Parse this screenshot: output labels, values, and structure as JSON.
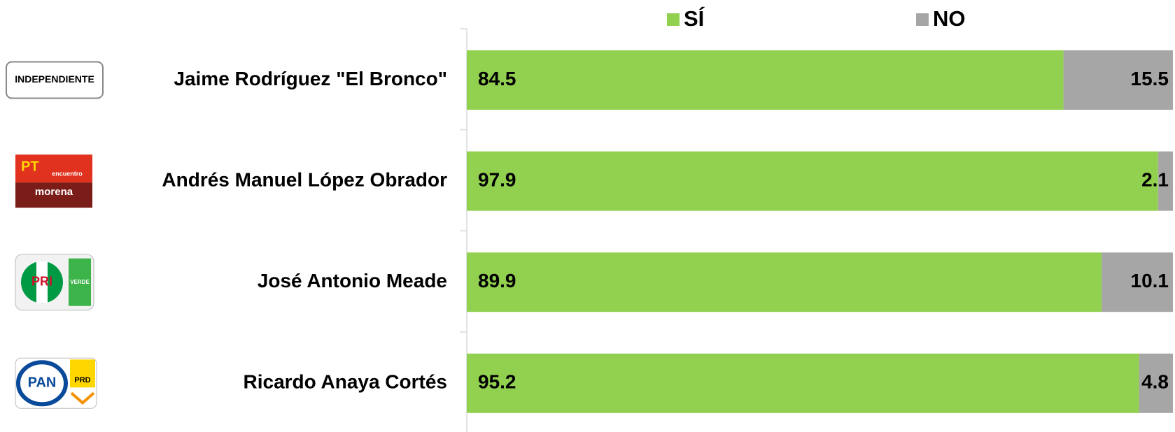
{
  "chart_data": {
    "type": "stacked_barh",
    "categories": [
      "Jaime Rodríguez \"El Bronco\"",
      "Andrés Manuel López Obrador",
      "José Antonio Meade",
      "Ricardo Anaya Cortés"
    ],
    "series": [
      {
        "name": "SÍ",
        "color": "#92d050",
        "values": [
          84.5,
          97.9,
          89.9,
          95.2
        ]
      },
      {
        "name": "NO",
        "color": "#a6a6a6",
        "values": [
          15.5,
          2.1,
          10.1,
          4.8
        ]
      }
    ],
    "xlim": [
      0,
      100
    ],
    "legend": "top",
    "party_logos": [
      [
        "INDEPENDIENTE"
      ],
      [
        "PT",
        "encuentro",
        "morena"
      ],
      [
        "PRI",
        "VERDE"
      ],
      [
        "PAN",
        "PRD"
      ]
    ]
  }
}
